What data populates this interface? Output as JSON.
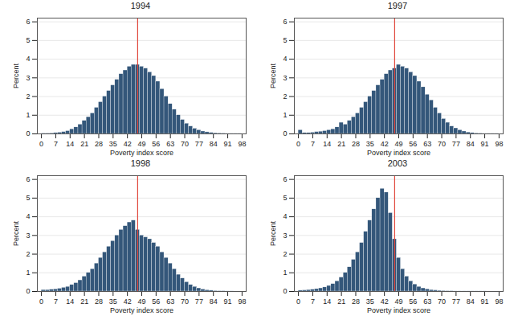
{
  "chart_data": [
    {
      "type": "histogram",
      "title": "1994",
      "x_label": "Poverty index score",
      "y_label": "Percent",
      "bins": [
        0,
        2,
        4,
        6,
        8,
        10,
        12,
        14,
        16,
        18,
        20,
        22,
        24,
        26,
        28,
        30,
        32,
        34,
        36,
        38,
        40,
        42,
        44,
        46,
        48,
        50,
        52,
        54,
        56,
        58,
        60,
        62,
        64,
        66,
        68,
        70,
        72,
        74,
        76,
        78,
        80,
        82,
        84,
        86,
        88,
        90,
        92,
        94,
        96,
        98
      ],
      "values": [
        0.02,
        0.02,
        0.03,
        0.05,
        0.07,
        0.1,
        0.15,
        0.25,
        0.35,
        0.5,
        0.7,
        0.9,
        1.1,
        1.4,
        1.7,
        2.0,
        2.3,
        2.6,
        2.9,
        3.2,
        3.4,
        3.6,
        3.7,
        3.7,
        3.6,
        3.5,
        3.3,
        3.1,
        2.8,
        2.4,
        2.0,
        1.6,
        1.3,
        1.0,
        0.75,
        0.55,
        0.4,
        0.28,
        0.2,
        0.13,
        0.09,
        0.06,
        0.04,
        0.03,
        0.02,
        0.01,
        0.01,
        0.01,
        0.01
      ],
      "color": "#34577a",
      "xlim": [
        -2,
        100
      ],
      "ylim": [
        0,
        6.2
      ],
      "xticks": [
        0,
        7,
        14,
        21,
        28,
        35,
        42,
        49,
        56,
        63,
        70,
        77,
        84,
        91,
        98
      ],
      "yticks": [
        0,
        1,
        2,
        3,
        4,
        5,
        6
      ],
      "grid": true,
      "vline": {
        "value": 47,
        "color": "#e0453a"
      }
    },
    {
      "type": "histogram",
      "title": "1997",
      "x_label": "Poverty index score",
      "y_label": "Percent",
      "bins": [
        0,
        2,
        4,
        6,
        8,
        10,
        12,
        14,
        16,
        18,
        20,
        22,
        24,
        26,
        28,
        30,
        32,
        34,
        36,
        38,
        40,
        42,
        44,
        46,
        48,
        50,
        52,
        54,
        56,
        58,
        60,
        62,
        64,
        66,
        68,
        70,
        72,
        74,
        76,
        78,
        80,
        82,
        84,
        86,
        88,
        90,
        92,
        94,
        96,
        98
      ],
      "values": [
        0.2,
        0.05,
        0.05,
        0.07,
        0.1,
        0.12,
        0.15,
        0.2,
        0.25,
        0.35,
        0.6,
        0.5,
        0.7,
        0.9,
        1.1,
        1.4,
        1.7,
        2.0,
        2.3,
        2.6,
        2.9,
        3.2,
        3.4,
        3.5,
        3.7,
        3.6,
        3.5,
        3.3,
        3.1,
        2.8,
        2.5,
        2.1,
        1.8,
        1.4,
        1.1,
        0.8,
        0.6,
        0.4,
        0.3,
        0.2,
        0.13,
        0.08,
        0.05,
        0.03,
        0.02,
        0.01,
        0.01,
        0.01,
        0.01
      ],
      "color": "#34577a",
      "xlim": [
        -2,
        100
      ],
      "ylim": [
        0,
        6.2
      ],
      "xticks": [
        0,
        7,
        14,
        21,
        28,
        35,
        42,
        49,
        56,
        63,
        70,
        77,
        84,
        91,
        98
      ],
      "yticks": [
        0,
        1,
        2,
        3,
        4,
        5,
        6
      ],
      "grid": true,
      "vline": {
        "value": 47,
        "color": "#e0453a"
      }
    },
    {
      "type": "histogram",
      "title": "1998",
      "x_label": "Poverty index score",
      "y_label": "Percent",
      "bins": [
        0,
        2,
        4,
        6,
        8,
        10,
        12,
        14,
        16,
        18,
        20,
        22,
        24,
        26,
        28,
        30,
        32,
        34,
        36,
        38,
        40,
        42,
        44,
        46,
        48,
        50,
        52,
        54,
        56,
        58,
        60,
        62,
        64,
        66,
        68,
        70,
        72,
        74,
        76,
        78,
        80,
        82,
        84,
        86,
        88,
        90,
        92,
        94,
        96,
        98
      ],
      "values": [
        0.08,
        0.08,
        0.1,
        0.12,
        0.15,
        0.2,
        0.25,
        0.35,
        0.45,
        0.6,
        0.8,
        1.0,
        1.2,
        1.5,
        1.8,
        2.1,
        2.4,
        2.7,
        3.0,
        3.3,
        3.5,
        3.7,
        3.8,
        3.3,
        3.0,
        2.9,
        2.8,
        2.6,
        2.4,
        2.1,
        1.8,
        1.5,
        1.2,
        0.9,
        0.7,
        0.5,
        0.35,
        0.25,
        0.17,
        0.11,
        0.07,
        0.05,
        0.03,
        0.02,
        0.02,
        0.01,
        0.01,
        0,
        0
      ],
      "color": "#34577a",
      "xlim": [
        -2,
        100
      ],
      "ylim": [
        0,
        6.2
      ],
      "xticks": [
        0,
        7,
        14,
        21,
        28,
        35,
        42,
        49,
        56,
        63,
        70,
        77,
        84,
        91,
        98
      ],
      "yticks": [
        0,
        1,
        2,
        3,
        4,
        5,
        6
      ],
      "grid": true,
      "vline": {
        "value": 47,
        "color": "#e0453a"
      }
    },
    {
      "type": "histogram",
      "title": "2003",
      "x_label": "Poverty index score",
      "y_label": "Percent",
      "bins": [
        0,
        2,
        4,
        6,
        8,
        10,
        12,
        14,
        16,
        18,
        20,
        22,
        24,
        26,
        28,
        30,
        32,
        34,
        36,
        38,
        40,
        42,
        44,
        46,
        48,
        50,
        52,
        54,
        56,
        58,
        60,
        62,
        64,
        66,
        68,
        70,
        72,
        74,
        76,
        78,
        80,
        82,
        84,
        86,
        88,
        90,
        92,
        94,
        96,
        98
      ],
      "values": [
        0.05,
        0.06,
        0.08,
        0.1,
        0.13,
        0.17,
        0.22,
        0.3,
        0.4,
        0.55,
        0.75,
        1.0,
        1.3,
        1.7,
        2.1,
        2.6,
        3.2,
        3.8,
        4.4,
        5.0,
        5.5,
        5.3,
        4.2,
        2.8,
        1.8,
        1.2,
        0.8,
        0.55,
        0.38,
        0.25,
        0.17,
        0.12,
        0.08,
        0.06,
        0.04,
        0.03,
        0.02,
        0.02,
        0.01,
        0.01,
        0.01,
        0.01,
        0.01,
        0.01,
        0.01,
        0.01,
        0,
        0,
        0
      ],
      "color": "#34577a",
      "xlim": [
        -2,
        100
      ],
      "ylim": [
        0,
        6.2
      ],
      "xticks": [
        0,
        7,
        14,
        21,
        28,
        35,
        42,
        49,
        56,
        63,
        70,
        77,
        84,
        91,
        98
      ],
      "yticks": [
        0,
        1,
        2,
        3,
        4,
        5,
        6
      ],
      "grid": true,
      "vline": {
        "value": 47,
        "color": "#e0453a"
      }
    }
  ]
}
